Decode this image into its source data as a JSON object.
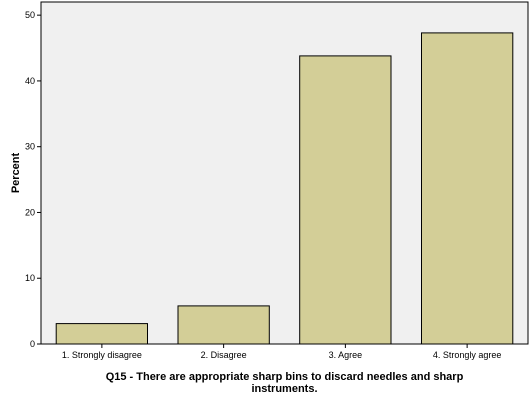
{
  "chart_data": {
    "type": "bar",
    "categories": [
      "1. Strongly disagree",
      "2. Disagree",
      "3. Agree",
      "4. Strongly agree"
    ],
    "values": [
      3.1,
      5.8,
      43.8,
      47.3
    ],
    "xlabel_lines": [
      "Q15 - There are appropriate sharp bins to discard needles and sharp",
      "instruments."
    ],
    "ylabel": "Percent",
    "ylim": [
      0,
      52
    ],
    "yticks": [
      0,
      10,
      20,
      30,
      40,
      50
    ],
    "grid": false,
    "colors": {
      "plot_background": "#f0f0f0",
      "bar_fill": "#d3ce97",
      "bar_stroke": "#000000"
    }
  }
}
